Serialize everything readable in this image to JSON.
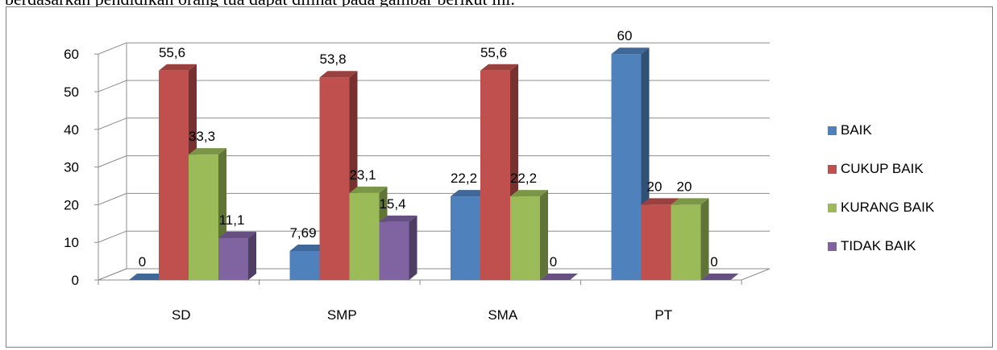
{
  "page": {
    "cut_text": "berdasarkan pendidikan orang tua dapat dilihat pada gambar berikut ini."
  },
  "chart_data": {
    "type": "bar",
    "style": "3d-clustered-column",
    "categories": [
      "SD",
      "SMP",
      "SMA",
      "PT"
    ],
    "series": [
      {
        "name": "BAIK",
        "color": "#4f81bd",
        "values": [
          0,
          7.69,
          22.2,
          60
        ],
        "labels": [
          "0",
          "7,69",
          "22,2",
          "60"
        ]
      },
      {
        "name": "CUKUP BAIK",
        "color": "#c0504d",
        "values": [
          55.6,
          53.8,
          55.6,
          20
        ],
        "labels": [
          "55,6",
          "53,8",
          "55,6",
          "20"
        ]
      },
      {
        "name": "KURANG BAIK",
        "color": "#9bbb59",
        "values": [
          33.3,
          23.1,
          22.2,
          20
        ],
        "labels": [
          "33,3",
          "23,1",
          "22,2",
          "20"
        ]
      },
      {
        "name": "TIDAK BAIK",
        "color": "#8064a2",
        "values": [
          11.1,
          15.4,
          0,
          0
        ],
        "labels": [
          "11,1",
          "15,4",
          "0",
          "0"
        ]
      }
    ],
    "ylim": [
      0,
      60
    ],
    "yticks": [
      "0",
      "10",
      "20",
      "30",
      "40",
      "50",
      "60"
    ],
    "grid": true,
    "legend_position": "right",
    "title": "",
    "xlabel": "",
    "ylabel": ""
  }
}
